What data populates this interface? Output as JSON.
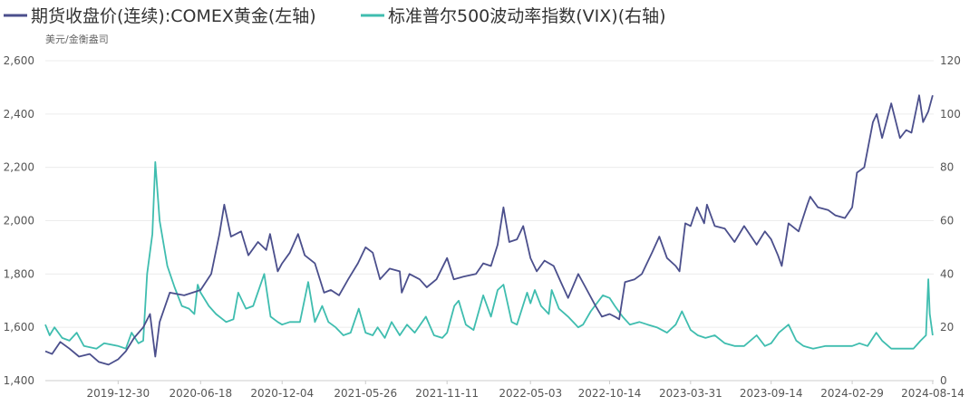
{
  "chart_data": {
    "type": "line",
    "legend_position": "top-left",
    "grid": true,
    "unit_label": "美元/金衡盎司",
    "x_tick_labels": [
      "2019-12-30",
      "2020-06-18",
      "2020-12-04",
      "2021-05-26",
      "2021-11-11",
      "2022-05-03",
      "2022-10-14",
      "2023-03-31",
      "2023-09-14",
      "2024-02-29",
      "2024-08-14"
    ],
    "x_range": [
      "2019-08-01",
      "2024-08-16"
    ],
    "y_left": {
      "min": 1400,
      "max": 2600,
      "ticks": [
        "1,400",
        "1,600",
        "1,800",
        "2,000",
        "2,200",
        "2,400",
        "2,600"
      ]
    },
    "y_right": {
      "min": 0,
      "max": 120,
      "ticks": [
        "0",
        "20",
        "40",
        "60",
        "80",
        "100",
        "120"
      ]
    },
    "series": [
      {
        "name": "期货收盘价(连续):COMEX黄金(左轴)",
        "axis": "left",
        "color": "#4b4f8c",
        "points": [
          [
            "2019-08-01",
            1510
          ],
          [
            "2019-08-15",
            1500
          ],
          [
            "2019-09-01",
            1545
          ],
          [
            "2019-09-20",
            1520
          ],
          [
            "2019-10-10",
            1490
          ],
          [
            "2019-11-01",
            1500
          ],
          [
            "2019-11-20",
            1470
          ],
          [
            "2019-12-10",
            1460
          ],
          [
            "2019-12-30",
            1480
          ],
          [
            "2020-01-15",
            1510
          ],
          [
            "2020-02-01",
            1560
          ],
          [
            "2020-02-20",
            1600
          ],
          [
            "2020-03-05",
            1650
          ],
          [
            "2020-03-16",
            1490
          ],
          [
            "2020-03-25",
            1620
          ],
          [
            "2020-04-15",
            1730
          ],
          [
            "2020-05-15",
            1720
          ],
          [
            "2020-06-18",
            1740
          ],
          [
            "2020-07-10",
            1800
          ],
          [
            "2020-07-27",
            1950
          ],
          [
            "2020-08-06",
            2060
          ],
          [
            "2020-08-20",
            1940
          ],
          [
            "2020-09-10",
            1960
          ],
          [
            "2020-09-25",
            1870
          ],
          [
            "2020-10-15",
            1920
          ],
          [
            "2020-11-01",
            1890
          ],
          [
            "2020-11-09",
            1950
          ],
          [
            "2020-11-25",
            1810
          ],
          [
            "2020-12-04",
            1840
          ],
          [
            "2020-12-20",
            1880
          ],
          [
            "2021-01-06",
            1950
          ],
          [
            "2021-01-20",
            1870
          ],
          [
            "2021-02-10",
            1840
          ],
          [
            "2021-03-01",
            1730
          ],
          [
            "2021-03-15",
            1740
          ],
          [
            "2021-04-01",
            1720
          ],
          [
            "2021-04-20",
            1780
          ],
          [
            "2021-05-10",
            1840
          ],
          [
            "2021-05-26",
            1900
          ],
          [
            "2021-06-10",
            1880
          ],
          [
            "2021-06-25",
            1780
          ],
          [
            "2021-07-15",
            1820
          ],
          [
            "2021-08-05",
            1810
          ],
          [
            "2021-08-09",
            1730
          ],
          [
            "2021-08-25",
            1800
          ],
          [
            "2021-09-15",
            1780
          ],
          [
            "2021-09-30",
            1750
          ],
          [
            "2021-10-20",
            1780
          ],
          [
            "2021-11-11",
            1860
          ],
          [
            "2021-11-25",
            1780
          ],
          [
            "2021-12-15",
            1790
          ],
          [
            "2022-01-10",
            1800
          ],
          [
            "2022-01-25",
            1840
          ],
          [
            "2022-02-10",
            1830
          ],
          [
            "2022-02-24",
            1910
          ],
          [
            "2022-03-08",
            2050
          ],
          [
            "2022-03-20",
            1920
          ],
          [
            "2022-04-05",
            1930
          ],
          [
            "2022-04-18",
            1980
          ],
          [
            "2022-05-03",
            1860
          ],
          [
            "2022-05-16",
            1810
          ],
          [
            "2022-06-01",
            1850
          ],
          [
            "2022-06-20",
            1830
          ],
          [
            "2022-07-05",
            1770
          ],
          [
            "2022-07-20",
            1710
          ],
          [
            "2022-08-10",
            1800
          ],
          [
            "2022-08-25",
            1750
          ],
          [
            "2022-09-15",
            1680
          ],
          [
            "2022-09-28",
            1640
          ],
          [
            "2022-10-14",
            1650
          ],
          [
            "2022-10-25",
            1640
          ],
          [
            "2022-11-03",
            1630
          ],
          [
            "2022-11-15",
            1770
          ],
          [
            "2022-12-05",
            1780
          ],
          [
            "2022-12-20",
            1800
          ],
          [
            "2023-01-10",
            1880
          ],
          [
            "2023-01-25",
            1940
          ],
          [
            "2023-02-10",
            1860
          ],
          [
            "2023-02-28",
            1830
          ],
          [
            "2023-03-08",
            1810
          ],
          [
            "2023-03-20",
            1990
          ],
          [
            "2023-03-31",
            1980
          ],
          [
            "2023-04-13",
            2050
          ],
          [
            "2023-04-28",
            1990
          ],
          [
            "2023-05-04",
            2060
          ],
          [
            "2023-05-20",
            1980
          ],
          [
            "2023-06-10",
            1970
          ],
          [
            "2023-06-30",
            1920
          ],
          [
            "2023-07-20",
            1980
          ],
          [
            "2023-08-15",
            1910
          ],
          [
            "2023-09-01",
            1960
          ],
          [
            "2023-09-14",
            1930
          ],
          [
            "2023-09-28",
            1870
          ],
          [
            "2023-10-06",
            1830
          ],
          [
            "2023-10-20",
            1990
          ],
          [
            "2023-11-10",
            1960
          ],
          [
            "2023-11-28",
            2060
          ],
          [
            "2023-12-04",
            2090
          ],
          [
            "2023-12-20",
            2050
          ],
          [
            "2024-01-10",
            2040
          ],
          [
            "2024-01-25",
            2020
          ],
          [
            "2024-02-14",
            2010
          ],
          [
            "2024-02-29",
            2050
          ],
          [
            "2024-03-10",
            2180
          ],
          [
            "2024-03-25",
            2200
          ],
          [
            "2024-04-12",
            2370
          ],
          [
            "2024-04-20",
            2400
          ],
          [
            "2024-05-01",
            2310
          ],
          [
            "2024-05-20",
            2440
          ],
          [
            "2024-06-07",
            2310
          ],
          [
            "2024-06-20",
            2340
          ],
          [
            "2024-07-01",
            2330
          ],
          [
            "2024-07-17",
            2470
          ],
          [
            "2024-07-25",
            2370
          ],
          [
            "2024-08-05",
            2410
          ],
          [
            "2024-08-14",
            2470
          ]
        ]
      },
      {
        "name": "标准普尔500波动率指数(VIX)(右轴)",
        "axis": "right",
        "color": "#3fbdaf",
        "points": [
          [
            "2019-08-01",
            21
          ],
          [
            "2019-08-10",
            17
          ],
          [
            "2019-08-20",
            20
          ],
          [
            "2019-09-05",
            16
          ],
          [
            "2019-09-20",
            15
          ],
          [
            "2019-10-05",
            18
          ],
          [
            "2019-10-20",
            13
          ],
          [
            "2019-11-15",
            12
          ],
          [
            "2019-12-01",
            14
          ],
          [
            "2019-12-30",
            13
          ],
          [
            "2020-01-15",
            12
          ],
          [
            "2020-01-27",
            18
          ],
          [
            "2020-02-10",
            14
          ],
          [
            "2020-02-20",
            15
          ],
          [
            "2020-02-28",
            40
          ],
          [
            "2020-03-10",
            55
          ],
          [
            "2020-03-16",
            82
          ],
          [
            "2020-03-25",
            60
          ],
          [
            "2020-04-10",
            43
          ],
          [
            "2020-04-25",
            35
          ],
          [
            "2020-05-10",
            28
          ],
          [
            "2020-05-25",
            27
          ],
          [
            "2020-06-05",
            25
          ],
          [
            "2020-06-12",
            36
          ],
          [
            "2020-06-18",
            33
          ],
          [
            "2020-07-05",
            28
          ],
          [
            "2020-07-20",
            25
          ],
          [
            "2020-08-10",
            22
          ],
          [
            "2020-08-25",
            23
          ],
          [
            "2020-09-04",
            33
          ],
          [
            "2020-09-20",
            27
          ],
          [
            "2020-10-05",
            28
          ],
          [
            "2020-10-28",
            40
          ],
          [
            "2020-11-10",
            24
          ],
          [
            "2020-11-25",
            22
          ],
          [
            "2020-12-04",
            21
          ],
          [
            "2020-12-20",
            22
          ],
          [
            "2021-01-10",
            22
          ],
          [
            "2021-01-27",
            37
          ],
          [
            "2021-02-10",
            22
          ],
          [
            "2021-02-25",
            28
          ],
          [
            "2021-03-10",
            22
          ],
          [
            "2021-03-25",
            20
          ],
          [
            "2021-04-10",
            17
          ],
          [
            "2021-04-25",
            18
          ],
          [
            "2021-05-12",
            27
          ],
          [
            "2021-05-26",
            18
          ],
          [
            "2021-06-10",
            17
          ],
          [
            "2021-06-20",
            20
          ],
          [
            "2021-07-05",
            16
          ],
          [
            "2021-07-19",
            22
          ],
          [
            "2021-08-05",
            17
          ],
          [
            "2021-08-20",
            21
          ],
          [
            "2021-09-05",
            18
          ],
          [
            "2021-09-28",
            24
          ],
          [
            "2021-10-15",
            17
          ],
          [
            "2021-11-01",
            16
          ],
          [
            "2021-11-11",
            18
          ],
          [
            "2021-11-26",
            28
          ],
          [
            "2021-12-05",
            30
          ],
          [
            "2021-12-20",
            21
          ],
          [
            "2022-01-05",
            19
          ],
          [
            "2022-01-25",
            32
          ],
          [
            "2022-02-10",
            24
          ],
          [
            "2022-02-24",
            34
          ],
          [
            "2022-03-08",
            36
          ],
          [
            "2022-03-25",
            22
          ],
          [
            "2022-04-05",
            21
          ],
          [
            "2022-04-26",
            33
          ],
          [
            "2022-05-03",
            29
          ],
          [
            "2022-05-12",
            34
          ],
          [
            "2022-05-25",
            28
          ],
          [
            "2022-06-10",
            25
          ],
          [
            "2022-06-16",
            34
          ],
          [
            "2022-07-01",
            27
          ],
          [
            "2022-07-20",
            24
          ],
          [
            "2022-08-10",
            20
          ],
          [
            "2022-08-20",
            21
          ],
          [
            "2022-09-05",
            26
          ],
          [
            "2022-09-30",
            32
          ],
          [
            "2022-10-14",
            31
          ],
          [
            "2022-10-25",
            28
          ],
          [
            "2022-11-10",
            24
          ],
          [
            "2022-11-25",
            21
          ],
          [
            "2022-12-15",
            22
          ],
          [
            "2023-01-01",
            21
          ],
          [
            "2023-01-20",
            20
          ],
          [
            "2023-02-10",
            18
          ],
          [
            "2023-02-28",
            21
          ],
          [
            "2023-03-13",
            26
          ],
          [
            "2023-03-31",
            19
          ],
          [
            "2023-04-15",
            17
          ],
          [
            "2023-05-01",
            16
          ],
          [
            "2023-05-20",
            17
          ],
          [
            "2023-06-10",
            14
          ],
          [
            "2023-06-30",
            13
          ],
          [
            "2023-07-20",
            13
          ],
          [
            "2023-08-15",
            17
          ],
          [
            "2023-09-01",
            13
          ],
          [
            "2023-09-14",
            14
          ],
          [
            "2023-09-30",
            18
          ],
          [
            "2023-10-20",
            21
          ],
          [
            "2023-11-05",
            15
          ],
          [
            "2023-11-20",
            13
          ],
          [
            "2023-12-10",
            12
          ],
          [
            "2024-01-05",
            13
          ],
          [
            "2024-01-20",
            13
          ],
          [
            "2024-02-10",
            13
          ],
          [
            "2024-02-29",
            13
          ],
          [
            "2024-03-15",
            14
          ],
          [
            "2024-04-01",
            13
          ],
          [
            "2024-04-19",
            18
          ],
          [
            "2024-05-01",
            15
          ],
          [
            "2024-05-20",
            12
          ],
          [
            "2024-06-15",
            12
          ],
          [
            "2024-07-05",
            12
          ],
          [
            "2024-07-20",
            15
          ],
          [
            "2024-07-31",
            17
          ],
          [
            "2024-08-05",
            38
          ],
          [
            "2024-08-08",
            25
          ],
          [
            "2024-08-14",
            17
          ]
        ]
      }
    ]
  }
}
